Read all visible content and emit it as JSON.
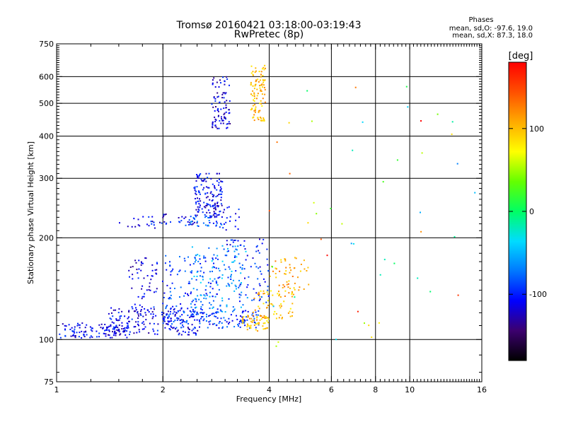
{
  "header": {
    "title": "Tromsø 20160421 03:18:00-03:19:43",
    "subtitle": "RwPretec (8p)"
  },
  "stats": {
    "heading": "Phases",
    "line_o": "mean, sd,O: -97.6, 19.0",
    "line_x": "mean, sd,X:  87.3, 18.0"
  },
  "chart_data": {
    "type": "scatter",
    "title": "Tromsø 20160421 03:18:00-03:19:43",
    "subtitle": "RwPretec (8p)",
    "xlabel": "Frequency [MHz]",
    "ylabel": "Stationary phase Virtual Height [km]",
    "xscale": "log",
    "yscale": "log",
    "xlim": [
      1,
      16
    ],
    "ylim": [
      75,
      750
    ],
    "xticks": [
      1,
      2,
      4,
      6,
      8,
      10,
      16
    ],
    "yticks": [
      75,
      100,
      200,
      300,
      400,
      500,
      600,
      750
    ],
    "x_gridlines": [
      2,
      4,
      6,
      8,
      10
    ],
    "y_gridlines": [
      100,
      200,
      300,
      400,
      500,
      600
    ],
    "grid": true,
    "colorbar": {
      "label": "[deg]",
      "min": -180,
      "max": 180,
      "ticks": [
        100,
        0,
        -100
      ],
      "colors": [
        "#000000",
        "#3c006e",
        "#0000ff",
        "#0078ff",
        "#00dcff",
        "#00ff64",
        "#64ff00",
        "#ffff00",
        "#ffaa00",
        "#ff5000",
        "#ff0000"
      ]
    },
    "clusters": [
      {
        "f_min": 1.0,
        "f_max": 1.6,
        "h_min": 101,
        "h_max": 112,
        "n": 120,
        "phase": -110
      },
      {
        "f_min": 1.4,
        "f_max": 2.6,
        "h_min": 103,
        "h_max": 125,
        "n": 180,
        "phase": -110
      },
      {
        "f_min": 2.0,
        "f_max": 3.8,
        "h_min": 108,
        "h_max": 122,
        "n": 140,
        "phase": -95
      },
      {
        "f_min": 1.6,
        "f_max": 2.0,
        "h_min": 120,
        "h_max": 175,
        "n": 60,
        "phase": -115
      },
      {
        "f_min": 2.0,
        "f_max": 2.9,
        "h_min": 118,
        "h_max": 178,
        "n": 120,
        "phase": -90
      },
      {
        "f_min": 2.4,
        "f_max": 3.5,
        "h_min": 120,
        "h_max": 190,
        "n": 110,
        "phase": -60
      },
      {
        "f_min": 3.0,
        "f_max": 4.0,
        "h_min": 128,
        "h_max": 200,
        "n": 80,
        "phase": -100
      },
      {
        "f_min": 3.3,
        "f_max": 4.0,
        "h_min": 106,
        "h_max": 118,
        "n": 60,
        "phase": 100
      },
      {
        "f_min": 3.6,
        "f_max": 4.7,
        "h_min": 115,
        "h_max": 140,
        "n": 60,
        "phase": 100
      },
      {
        "f_min": 4.0,
        "f_max": 5.2,
        "h_min": 140,
        "h_max": 175,
        "n": 50,
        "phase": 110
      },
      {
        "f_min": 1.5,
        "f_max": 2.0,
        "h_min": 212,
        "h_max": 232,
        "n": 22,
        "phase": -110
      },
      {
        "f_min": 2.0,
        "f_max": 2.5,
        "h_min": 218,
        "h_max": 236,
        "n": 26,
        "phase": -110
      },
      {
        "f_min": 2.3,
        "f_max": 3.0,
        "h_min": 215,
        "h_max": 232,
        "n": 30,
        "phase": -80
      },
      {
        "f_min": 2.45,
        "f_max": 2.95,
        "h_min": 230,
        "h_max": 310,
        "n": 140,
        "phase": -110
      },
      {
        "f_min": 2.7,
        "f_max": 3.3,
        "h_min": 210,
        "h_max": 250,
        "n": 30,
        "phase": -110
      },
      {
        "f_min": 2.75,
        "f_max": 3.1,
        "h_min": 420,
        "h_max": 600,
        "n": 90,
        "phase": -115
      },
      {
        "f_min": 3.55,
        "f_max": 3.9,
        "h_min": 440,
        "h_max": 650,
        "n": 100,
        "phase": 100
      },
      {
        "f_min": 4.0,
        "f_max": 16.0,
        "h_min": 95,
        "h_max": 620,
        "n": 50,
        "phase": 60
      }
    ]
  }
}
